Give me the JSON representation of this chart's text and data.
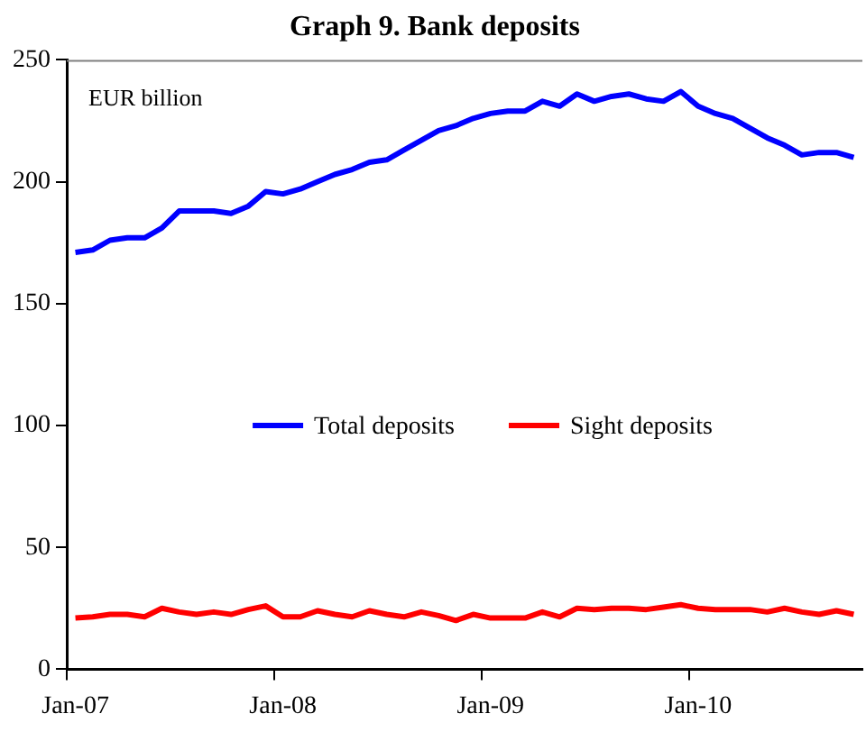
{
  "chart_data": {
    "type": "line",
    "title": "Graph 9. Bank deposits",
    "annotations": [
      "EUR billion"
    ],
    "categories": [
      "Jan-07",
      null,
      null,
      null,
      null,
      null,
      null,
      null,
      null,
      null,
      null,
      null,
      "Jan-08",
      null,
      null,
      null,
      null,
      null,
      null,
      null,
      null,
      null,
      null,
      null,
      "Jan-09",
      null,
      null,
      null,
      null,
      null,
      null,
      null,
      null,
      null,
      null,
      null,
      "Jan-10",
      null,
      null,
      null,
      null,
      null,
      null,
      null,
      null,
      null
    ],
    "series": [
      {
        "name": "Total deposits",
        "color": "#0000ff",
        "values": [
          171,
          172,
          176,
          177,
          177,
          181,
          188,
          188,
          188,
          187,
          190,
          196,
          195,
          197,
          200,
          203,
          205,
          208,
          209,
          213,
          217,
          221,
          223,
          226,
          228,
          229,
          229,
          233,
          231,
          236,
          233,
          235,
          236,
          234,
          233,
          237,
          231,
          228,
          226,
          222,
          218,
          215,
          211,
          212,
          212,
          210
        ]
      },
      {
        "name": "Sight deposits",
        "color": "#ff0000",
        "values": [
          21,
          21.5,
          22.5,
          22.5,
          21.5,
          25,
          23.5,
          22.5,
          23.5,
          22.5,
          24.5,
          26,
          21.5,
          21.5,
          24,
          22.5,
          21.5,
          24,
          22.5,
          21.5,
          23.5,
          22,
          20,
          22.5,
          21,
          21,
          21,
          23.5,
          21.5,
          25,
          24.5,
          25,
          25,
          24.5,
          25.5,
          26.5,
          25,
          24.5,
          24.5,
          24.5,
          23.5,
          25,
          23.5,
          22.5,
          24,
          22.5
        ]
      }
    ],
    "ylim": [
      0,
      250
    ],
    "yticks": [
      0,
      50,
      100,
      150,
      200,
      250
    ],
    "grid": false,
    "legend": "center",
    "marker": "none",
    "line_style": "solid"
  }
}
